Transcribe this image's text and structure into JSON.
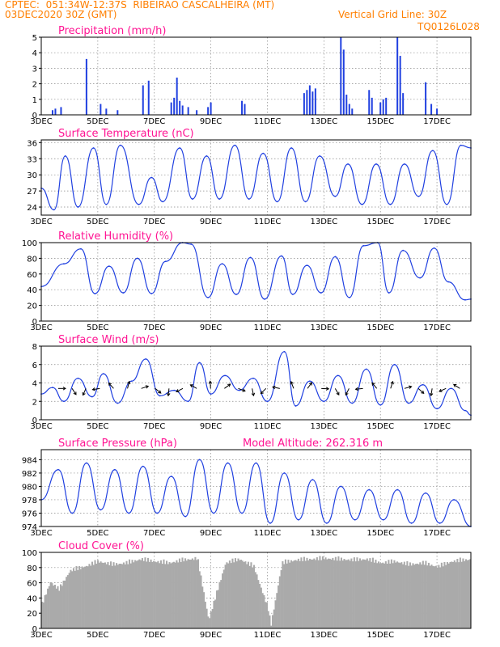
{
  "header": {
    "line1": "CPTEC:  051:34W-12:37S  RIBEIRAO CASCALHEIRA (MT)",
    "line2": "03DEC2020 30Z (GMT)",
    "vgrid": "Vertical Grid Line: 30Z",
    "code": "TQ0126L028"
  },
  "colors": {
    "line": "#2040e0",
    "title": "#ff1493",
    "header": "#ff7f00",
    "cloud": "#aaaaaa"
  },
  "x_axis": {
    "ticks": [
      "3DEC",
      "5DEC",
      "7DEC",
      "9DEC",
      "11DEC",
      "13DEC",
      "15DEC",
      "17DEC"
    ],
    "tick_days": [
      3,
      5,
      7,
      9,
      11,
      13,
      15,
      17
    ],
    "start_day": 3,
    "end_day": 18.2
  },
  "chart_data": [
    {
      "type": "bar",
      "title": "Precipitation (mm/h)",
      "ylim": [
        0,
        5
      ],
      "yticks": [
        0,
        1,
        2,
        3,
        4,
        5
      ],
      "x": [
        3.4,
        3.5,
        3.7,
        4.6,
        5.1,
        5.3,
        5.7,
        6.6,
        6.8,
        7.6,
        7.7,
        7.8,
        7.9,
        8.0,
        8.2,
        8.5,
        8.9,
        9.0,
        10.1,
        10.2,
        12.3,
        12.4,
        12.5,
        12.6,
        12.7,
        13.6,
        13.7,
        13.8,
        13.9,
        14.0,
        14.6,
        14.7,
        15.0,
        15.1,
        15.2,
        15.6,
        15.7,
        15.8,
        16.6,
        16.8,
        17.0
      ],
      "values": [
        0.3,
        0.4,
        0.5,
        3.6,
        0.7,
        0.4,
        0.3,
        1.9,
        2.2,
        0.8,
        1.1,
        2.4,
        0.9,
        0.6,
        0.5,
        0.3,
        0.5,
        0.8,
        0.9,
        0.7,
        1.4,
        1.6,
        1.9,
        1.5,
        1.7,
        5.0,
        4.2,
        1.3,
        0.7,
        0.4,
        1.6,
        1.1,
        0.8,
        1.0,
        1.1,
        5.0,
        3.8,
        1.4,
        2.1,
        0.7,
        0.4
      ]
    },
    {
      "type": "line",
      "title": "Surface Temperature (nC)",
      "ylim": [
        22.5,
        36.5
      ],
      "yticks": [
        24,
        27,
        30,
        33,
        36
      ],
      "x": [
        3.0,
        3.45,
        3.85,
        4.3,
        4.85,
        5.3,
        5.8,
        6.45,
        6.9,
        7.3,
        7.9,
        8.35,
        8.85,
        9.3,
        9.85,
        10.35,
        10.85,
        11.35,
        11.85,
        12.35,
        12.85,
        13.4,
        13.85,
        14.35,
        14.85,
        15.35,
        15.85,
        16.35,
        16.85,
        17.35,
        17.85,
        18.2
      ],
      "values": [
        27.5,
        23.5,
        33.5,
        24,
        35,
        24.5,
        35.5,
        24.5,
        29.5,
        25,
        35,
        25.5,
        33.5,
        25.5,
        35.5,
        25.5,
        34,
        25,
        35,
        25,
        33.5,
        26,
        32,
        24.5,
        32,
        24.5,
        32,
        26,
        34.5,
        24.5,
        35.5,
        35
      ],
      "series": []
    },
    {
      "type": "line",
      "title": "Relative Humidity (%)",
      "ylim": [
        0,
        100
      ],
      "yticks": [
        0,
        20,
        40,
        60,
        80,
        100
      ],
      "x": [
        3.0,
        3.8,
        4.4,
        4.9,
        5.4,
        5.9,
        6.4,
        6.9,
        7.4,
        8.0,
        8.3,
        8.9,
        9.4,
        9.9,
        10.4,
        10.9,
        11.5,
        11.9,
        12.4,
        12.9,
        13.4,
        13.9,
        14.4,
        14.9,
        15.3,
        15.8,
        16.4,
        16.9,
        17.4,
        18.0,
        18.2
      ],
      "values": [
        44,
        73,
        92,
        35,
        70,
        36,
        80,
        35,
        76,
        100,
        98,
        30,
        73,
        34,
        81,
        28,
        83,
        34,
        71,
        36,
        82,
        30,
        96,
        100,
        36,
        90,
        55,
        93,
        50,
        27,
        28
      ]
    },
    {
      "type": "line",
      "title": "Surface Wind (m/s)",
      "ylim": [
        0,
        8
      ],
      "yticks": [
        0,
        2,
        4,
        6,
        8
      ],
      "x": [
        3.0,
        3.4,
        3.8,
        4.3,
        4.8,
        5.2,
        5.7,
        6.2,
        6.7,
        7.2,
        7.7,
        8.2,
        8.6,
        9.0,
        9.5,
        10.0,
        10.5,
        11.0,
        11.6,
        12.0,
        12.5,
        13.0,
        13.5,
        14.0,
        14.5,
        15.0,
        15.5,
        16.0,
        16.5,
        17.0,
        17.5,
        18.0,
        18.2
      ],
      "values": [
        2.8,
        3.5,
        2.0,
        4.5,
        2.5,
        5.0,
        1.8,
        4.2,
        6.6,
        2.6,
        3.2,
        2.0,
        6.2,
        2.8,
        4.8,
        3.2,
        4.5,
        2.0,
        7.4,
        1.5,
        4.2,
        2.0,
        4.8,
        1.8,
        5.5,
        1.6,
        6.0,
        1.8,
        3.8,
        1.2,
        3.4,
        1.0,
        0.5
      ]
    },
    {
      "type": "line",
      "title": "Surface Pressure (hPa)",
      "subtitle": "Model Altitude: 262.316 m",
      "ylim": [
        974,
        985.5
      ],
      "yticks": [
        974,
        976,
        978,
        980,
        982,
        984
      ],
      "x": [
        3.0,
        3.6,
        4.1,
        4.6,
        5.1,
        5.6,
        6.1,
        6.6,
        7.1,
        7.6,
        8.1,
        8.6,
        9.1,
        9.6,
        10.1,
        10.6,
        11.1,
        11.6,
        12.1,
        12.6,
        13.1,
        13.6,
        14.1,
        14.6,
        15.1,
        15.6,
        16.1,
        16.6,
        17.1,
        17.6,
        18.2
      ],
      "values": [
        978,
        982.5,
        976,
        983.5,
        976.5,
        982.5,
        976,
        983,
        976,
        981.5,
        975.5,
        984,
        976,
        983.5,
        976,
        983.5,
        974.5,
        982,
        975,
        981,
        974.5,
        980,
        975,
        979.5,
        975,
        979.5,
        974.5,
        979,
        974.5,
        978,
        974
      ]
    },
    {
      "type": "area",
      "title": "Cloud Cover (%)",
      "ylim": [
        0,
        100
      ],
      "yticks": [
        0,
        20,
        40,
        60,
        80,
        100
      ],
      "x": [
        3.0,
        3.3,
        3.6,
        4.0,
        4.5,
        5.0,
        5.5,
        6.0,
        6.5,
        7.0,
        7.5,
        8.0,
        8.5,
        8.9,
        9.5,
        10.0,
        10.5,
        11.0,
        11.1,
        11.5,
        12.0,
        12.5,
        13.0,
        13.5,
        14.0,
        14.5,
        15.0,
        15.5,
        16.0,
        16.5,
        17.0,
        17.5,
        18.2
      ],
      "values": [
        35,
        65,
        55,
        80,
        85,
        92,
        88,
        90,
        95,
        92,
        90,
        94,
        96,
        15,
        90,
        95,
        85,
        30,
        8,
        90,
        94,
        95,
        96,
        95,
        94,
        95,
        90,
        92,
        88,
        90,
        85,
        92,
        95
      ]
    }
  ]
}
